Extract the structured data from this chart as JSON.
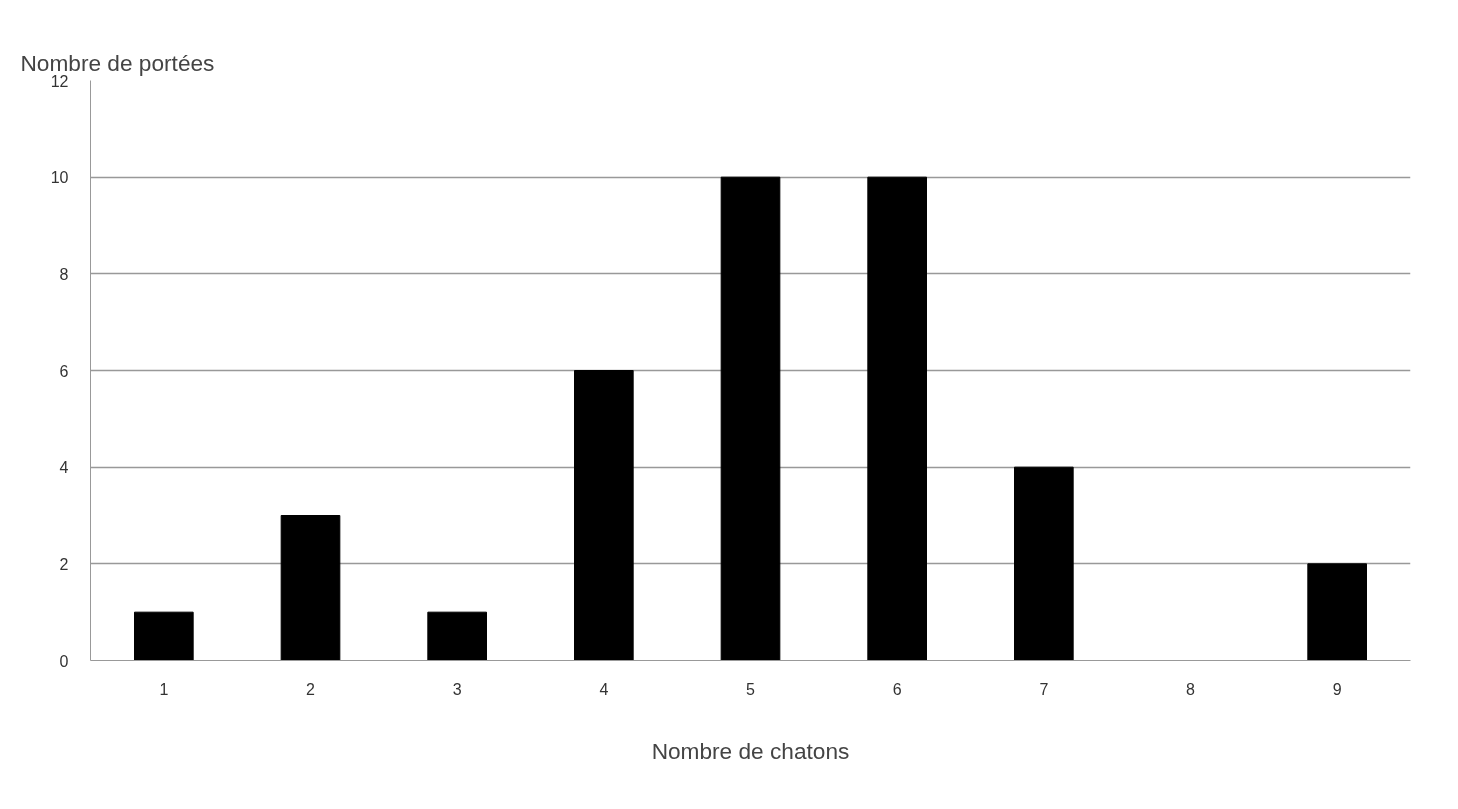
{
  "chart_data": {
    "type": "bar",
    "ylabel": "Nombre de portées",
    "xlabel": "Nombre de chatons",
    "categories": [
      "1",
      "2",
      "3",
      "4",
      "5",
      "6",
      "7",
      "8",
      "9"
    ],
    "values": [
      1,
      3,
      1,
      6,
      10,
      10,
      4,
      0,
      2
    ],
    "color": "#000000",
    "ylim": [
      0,
      12
    ],
    "yticks": [
      0,
      2,
      4,
      6,
      8,
      10,
      12
    ],
    "grid": "y"
  }
}
